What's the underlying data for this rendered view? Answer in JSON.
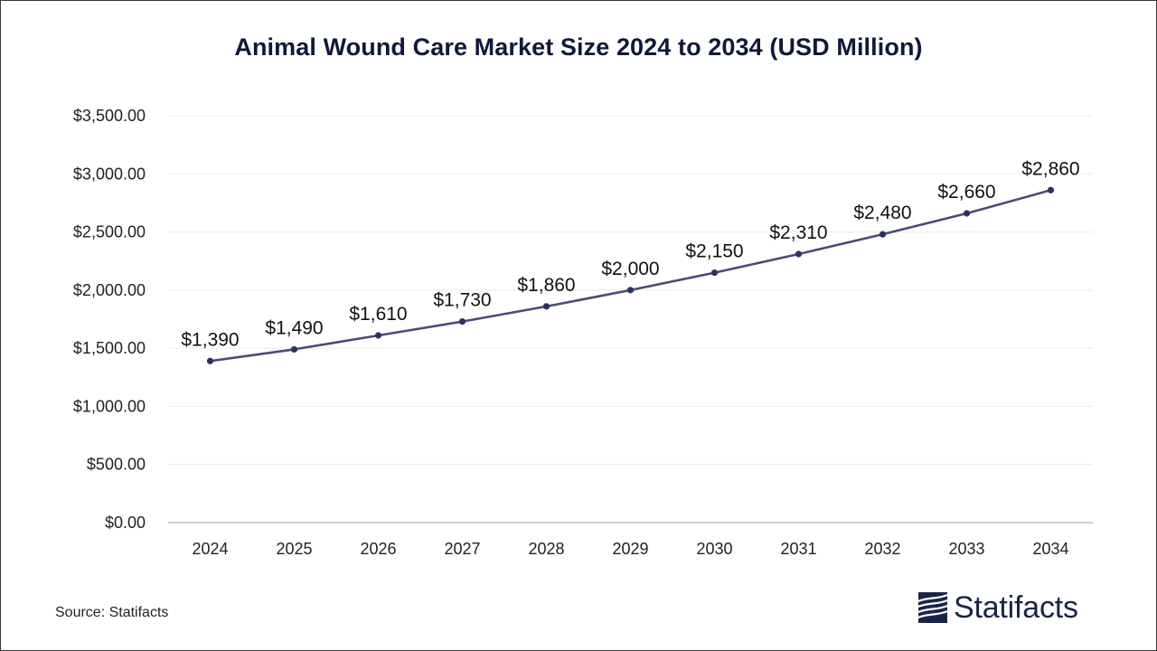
{
  "chart_data": {
    "type": "line",
    "title": "Animal Wound Care Market Size 2024 to 2034 (USD Million)",
    "xlabel": "",
    "ylabel": "",
    "categories": [
      "2024",
      "2025",
      "2026",
      "2027",
      "2028",
      "2029",
      "2030",
      "2031",
      "2032",
      "2033",
      "2034"
    ],
    "series": [
      {
        "values": [
          1390,
          1490,
          1610,
          1730,
          1860,
          2000,
          2150,
          2310,
          2480,
          2660,
          2860
        ],
        "data_labels": [
          "$1,390",
          "$1,490",
          "$1,610",
          "$1,730",
          "$1,860",
          "$2,000",
          "$2,150",
          "$2,310",
          "$2,480",
          "$2,660",
          "$2,860"
        ],
        "color": "#474c7a"
      }
    ],
    "ylim": [
      0,
      3500
    ],
    "yticks": [
      0,
      500,
      1000,
      1500,
      2000,
      2500,
      3000,
      3500
    ],
    "ytick_labels": [
      "$0.00",
      "$500.00",
      "$1,000.00",
      "$1,500.00",
      "$2,000.00",
      "$2,500.00",
      "$3,000.00",
      "$3,500.00"
    ],
    "grid": true,
    "legend": "none"
  },
  "footer": {
    "source": "Source: Statifacts",
    "brand": "Statifacts"
  },
  "colors": {
    "title": "#10183a",
    "line": "#474c7a",
    "marker": "#2e3160",
    "grid": "#ececec",
    "axis": "#bdbdbd",
    "brand": "#1b2447"
  }
}
